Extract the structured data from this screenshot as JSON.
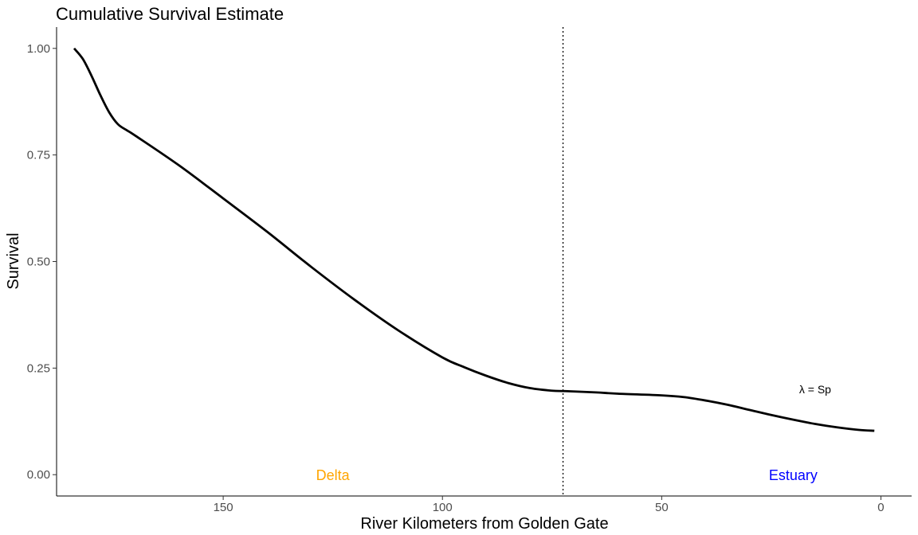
{
  "chart_data": {
    "type": "line",
    "title": "Cumulative Survival Estimate",
    "xlabel": "River Kilometers from Golden Gate",
    "ylabel": "Survival",
    "x_reversed": true,
    "xlim": [
      188,
      -7
    ],
    "ylim": [
      -0.05,
      1.05
    ],
    "x_ticks": [
      150,
      100,
      50,
      0
    ],
    "x_tick_labels": [
      "150",
      "100",
      "50",
      "0"
    ],
    "y_ticks": [
      0,
      0.25,
      0.5,
      0.75,
      1.0
    ],
    "y_tick_labels": [
      "0.00",
      "0.25",
      "0.50",
      "0.75",
      "1.00"
    ],
    "grid": false,
    "series": [
      {
        "color": "#000000",
        "x": [
          184,
          182,
          180,
          178,
          176,
          174,
          172,
          170,
          160,
          150,
          140,
          130,
          120,
          110,
          100,
          95,
          90,
          85,
          80,
          75,
          72,
          65,
          60,
          50,
          45,
          40,
          35,
          30,
          25,
          20,
          15,
          10,
          5,
          1.5
        ],
        "y": [
          1.0,
          0.975,
          0.935,
          0.89,
          0.85,
          0.822,
          0.808,
          0.795,
          0.725,
          0.648,
          0.57,
          0.488,
          0.41,
          0.338,
          0.275,
          0.252,
          0.232,
          0.215,
          0.203,
          0.197,
          0.196,
          0.193,
          0.19,
          0.186,
          0.182,
          0.174,
          0.164,
          0.152,
          0.14,
          0.129,
          0.119,
          0.111,
          0.105,
          0.103
        ]
      }
    ],
    "reference_line": {
      "x": 72.5,
      "style": "dotted"
    },
    "region_labels": [
      {
        "text": "Delta",
        "x": 125,
        "y": 0,
        "color": "#ffa500"
      },
      {
        "text": "Estuary",
        "x": 20,
        "y": 0,
        "color": "#0000ff"
      }
    ],
    "annotations": [
      {
        "text": "λ = Sp",
        "x": 15,
        "y": 0.2
      }
    ]
  }
}
